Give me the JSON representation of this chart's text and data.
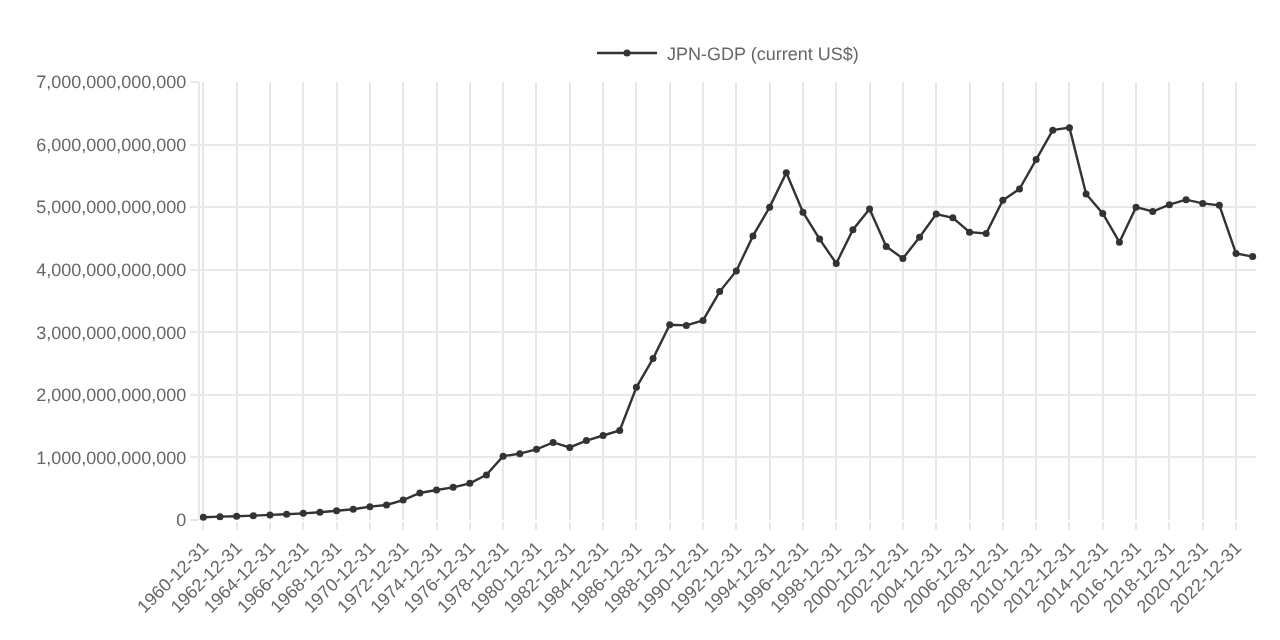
{
  "chart_data": {
    "type": "line",
    "categories": [
      "1960-12-31",
      null,
      "1962-12-31",
      null,
      "1964-12-31",
      null,
      "1966-12-31",
      null,
      "1968-12-31",
      null,
      "1970-12-31",
      null,
      "1972-12-31",
      null,
      "1974-12-31",
      null,
      "1976-12-31",
      null,
      "1978-12-31",
      null,
      "1980-12-31",
      null,
      "1982-12-31",
      null,
      "1984-12-31",
      null,
      "1986-12-31",
      null,
      "1988-12-31",
      null,
      "1990-12-31",
      null,
      "1992-12-31",
      null,
      "1994-12-31",
      null,
      "1996-12-31",
      null,
      "1998-12-31",
      null,
      "2000-12-31",
      null,
      "2002-12-31",
      null,
      "2004-12-31",
      null,
      "2006-12-31",
      null,
      "2008-12-31",
      null,
      "2010-12-31",
      null,
      "2012-12-31",
      null,
      "2014-12-31",
      null,
      "2016-12-31",
      null,
      "2018-12-31",
      null,
      "2020-12-31",
      null,
      "2022-12-31",
      null
    ],
    "series": [
      {
        "name": "JPN-GDP (current US$)",
        "color": "#333333",
        "values": [
          44300000000,
          53500000000,
          60700000000,
          69500000000,
          81700000000,
          91000000000,
          106000000000,
          124000000000,
          147000000000,
          172000000000,
          213000000000,
          240000000000,
          318000000000,
          432000000000,
          480000000000,
          522000000000,
          586000000000,
          721000000000,
          1020000000000,
          1060000000000,
          1130000000000,
          1240000000000,
          1160000000000,
          1270000000000,
          1350000000000,
          1430000000000,
          2120000000000,
          2580000000000,
          3120000000000,
          3110000000000,
          3190000000000,
          3650000000000,
          3980000000000,
          4540000000000,
          5000000000000,
          5550000000000,
          4920000000000,
          4490000000000,
          4100000000000,
          4640000000000,
          4970000000000,
          4370000000000,
          4180000000000,
          4520000000000,
          4890000000000,
          4830000000000,
          4600000000000,
          4580000000000,
          5110000000000,
          5290000000000,
          5760000000000,
          6230000000000,
          6270000000000,
          5210000000000,
          4900000000000,
          4440000000000,
          5000000000000,
          4930000000000,
          5040000000000,
          5120000000000,
          5060000000000,
          5030000000000,
          4260000000000,
          4210000000000
        ]
      }
    ],
    "ylim": [
      0,
      7000000000000
    ],
    "yticks": [
      {
        "value": 0,
        "label": "0"
      },
      {
        "value": 1000000000000,
        "label": "1,000,000,000,000"
      },
      {
        "value": 2000000000000,
        "label": "2,000,000,000,000"
      },
      {
        "value": 3000000000000,
        "label": "3,000,000,000,000"
      },
      {
        "value": 4000000000000,
        "label": "4,000,000,000,000"
      },
      {
        "value": 5000000000000,
        "label": "5,000,000,000,000"
      },
      {
        "value": 6000000000000,
        "label": "6,000,000,000,000"
      },
      {
        "value": 7000000000000,
        "label": "7,000,000,000,000"
      }
    ],
    "grid": true,
    "legend": "top",
    "marker": "circle",
    "line_style": "solid"
  }
}
